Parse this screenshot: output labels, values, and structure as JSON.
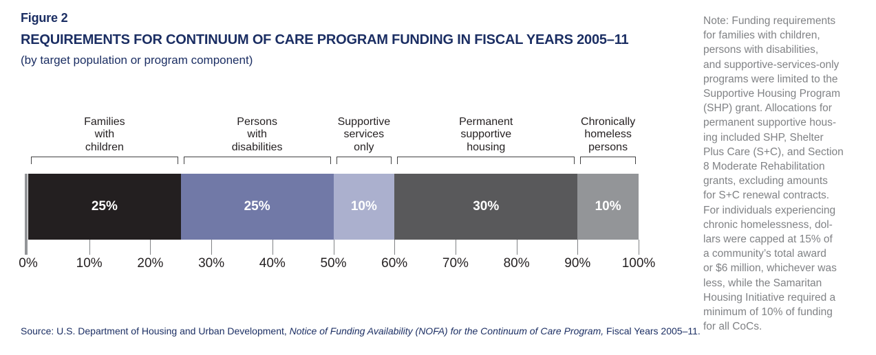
{
  "header": {
    "figure_label": "Figure 2",
    "title": "REQUIREMENTS FOR CONTINUUM OF CARE PROGRAM FUNDING IN FISCAL YEARS 2005–11",
    "subtitle": "(by target population or program component)"
  },
  "chart_data": {
    "type": "bar",
    "stacked": true,
    "orientation": "horizontal",
    "title": "REQUIREMENTS FOR CONTINUUM OF CARE PROGRAM FUNDING IN FISCAL YEARS 2005–11",
    "subtitle": "(by target population or program component)",
    "categories": [
      "Families with children",
      "Persons with disabilities",
      "Supportive services only",
      "Permanent supportive housing",
      "Chronically homeless persons"
    ],
    "values": [
      25,
      25,
      10,
      30,
      10
    ],
    "segments": [
      {
        "label": "Families\nwith\nchildren",
        "value": 25,
        "value_label": "25%",
        "color": "#231f20"
      },
      {
        "label": "Persons\nwith\ndisabilities",
        "value": 25,
        "value_label": "25%",
        "color": "#7179a7"
      },
      {
        "label": "Supportive\nservices\nonly",
        "value": 10,
        "value_label": "10%",
        "color": "#abb0ce"
      },
      {
        "label": "Permanent\nsupportive\nhousing",
        "value": 30,
        "value_label": "30%",
        "color": "#59595b"
      },
      {
        "label": "Chronically\nhomeless\npersons",
        "value": 10,
        "value_label": "10%",
        "color": "#939598"
      }
    ],
    "x_axis": {
      "min": 0,
      "max": 100,
      "tick_step": 10,
      "tick_labels": [
        "0%",
        "10%",
        "20%",
        "30%",
        "40%",
        "50%",
        "60%",
        "70%",
        "80%",
        "90%",
        "100%"
      ]
    },
    "value_label_color": "#ffffff",
    "grid": false,
    "legend": "none"
  },
  "source": {
    "prefix": "Source: U.S. Department of Housing and Urban Development, ",
    "italic": "Notice of Funding Availability (NOFA) for the Continuum of Care Program,",
    "suffix": " Fiscal Years 2005–11."
  },
  "note": {
    "text": "Note: Funding requirements\nfor families with children,\npersons with disabilities,\nand supportive-services-only\nprograms were limited to the\nSupportive Housing Program\n(SHP) grant. Allocations for\npermanent supportive hous-\ning included SHP, Shelter\nPlus Care (S+C), and Section\n8 Moderate Rehabilitation\ngrants, excluding amounts\nfor S+C renewal contracts.\nFor individuals experiencing\nchronic homelessness, dol-\nlars were capped at 15% of\na community’s total award\nor $6 million, whichever was\nless, while the Samaritan\nHousing Initiative required a\nminimum of 10% of funding\nfor all CoCs."
  }
}
